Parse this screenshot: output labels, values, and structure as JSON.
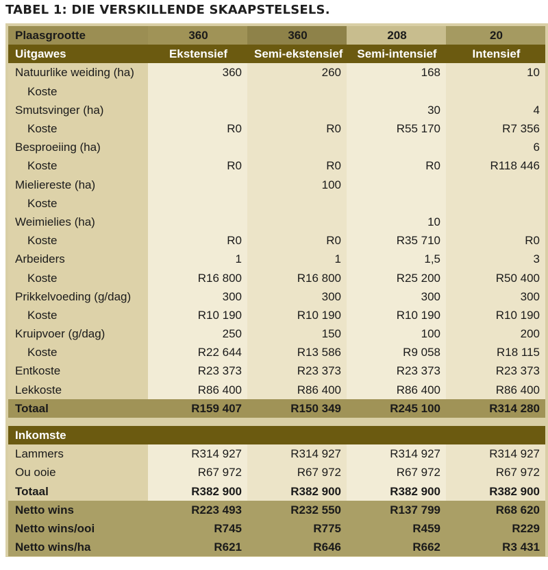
{
  "title": "TABEL 1: DIE VERSKILLENDE SKAAPSTELSELS.",
  "header1": {
    "label": "Plaasgrootte",
    "values": [
      "360",
      "360",
      "208",
      "20"
    ]
  },
  "header2": {
    "label": "Uitgawes",
    "values": [
      "Ekstensief",
      "Semi-ekstensief",
      "Semi-intensief",
      "Intensief"
    ]
  },
  "expenses": [
    {
      "label": "Natuurlike weiding (ha)",
      "sub": false,
      "values": [
        "360",
        "260",
        "168",
        "10"
      ]
    },
    {
      "label": "Koste",
      "sub": true,
      "values": [
        "",
        "",
        "",
        ""
      ]
    },
    {
      "label": "Smutsvinger (ha)",
      "sub": false,
      "values": [
        "",
        "",
        "30",
        "4"
      ]
    },
    {
      "label": "Koste",
      "sub": true,
      "values": [
        "R0",
        "R0",
        "R55 170",
        "R7 356"
      ]
    },
    {
      "label": "Besproeiing (ha)",
      "sub": false,
      "values": [
        "",
        "",
        "",
        "6"
      ]
    },
    {
      "label": "Koste",
      "sub": true,
      "values": [
        "R0",
        "R0",
        "R0",
        "R118 446"
      ]
    },
    {
      "label": "Mieliereste (ha)",
      "sub": false,
      "values": [
        "",
        "100",
        "",
        ""
      ]
    },
    {
      "label": "Koste",
      "sub": true,
      "values": [
        "",
        "",
        "",
        ""
      ]
    },
    {
      "label": "Weimielies (ha)",
      "sub": false,
      "values": [
        "",
        "",
        "10",
        ""
      ]
    },
    {
      "label": "Koste",
      "sub": true,
      "values": [
        "R0",
        "R0",
        "R35 710",
        "R0"
      ]
    },
    {
      "label": "Arbeiders",
      "sub": false,
      "values": [
        "1",
        "1",
        "1,5",
        "3"
      ]
    },
    {
      "label": "Koste",
      "sub": true,
      "values": [
        "R16 800",
        "R16 800",
        "R25 200",
        "R50 400"
      ]
    },
    {
      "label": "Prikkelvoeding (g/dag)",
      "sub": false,
      "values": [
        "300",
        "300",
        "300",
        "300"
      ]
    },
    {
      "label": "Koste",
      "sub": true,
      "values": [
        "R10 190",
        "R10 190",
        "R10 190",
        "R10 190"
      ]
    },
    {
      "label": "Kruipvoer (g/dag)",
      "sub": false,
      "values": [
        "250",
        "150",
        "100",
        "200"
      ]
    },
    {
      "label": "Koste",
      "sub": true,
      "values": [
        "R22 644",
        "R13 586",
        "R9 058",
        "R18 115"
      ]
    },
    {
      "label": "Entkoste",
      "sub": false,
      "values": [
        "R23 373",
        "R23 373",
        "R23 373",
        "R23 373"
      ]
    },
    {
      "label": "Lekkoste",
      "sub": false,
      "values": [
        "R86 400",
        "R86 400",
        "R86 400",
        "R86 400"
      ]
    }
  ],
  "expenses_total": {
    "label": "Totaal",
    "values": [
      "R159 407",
      "R150 349",
      "R245 100",
      "R314 280"
    ]
  },
  "income_header": "Inkomste",
  "income": [
    {
      "label": "Lammers",
      "values": [
        "R314 927",
        "R314 927",
        "R314 927",
        "R314 927"
      ]
    },
    {
      "label": "Ou ooie",
      "values": [
        "R67 972",
        "R67 972",
        "R67 972",
        "R67 972"
      ]
    }
  ],
  "income_total": {
    "label": "Totaal",
    "values": [
      "R382 900",
      "R382 900",
      "R382 900",
      "R382 900"
    ]
  },
  "profit": [
    {
      "label": "Netto wins",
      "values": [
        "R223 493",
        "R232 550",
        "R137 799",
        "R68 620"
      ]
    },
    {
      "label": "Netto wins/ooi",
      "values": [
        "R745",
        "R775",
        "R459",
        "R229"
      ]
    },
    {
      "label": "Netto wins/ha",
      "values": [
        "R621",
        "R646",
        "R662",
        "R3 431"
      ]
    }
  ]
}
